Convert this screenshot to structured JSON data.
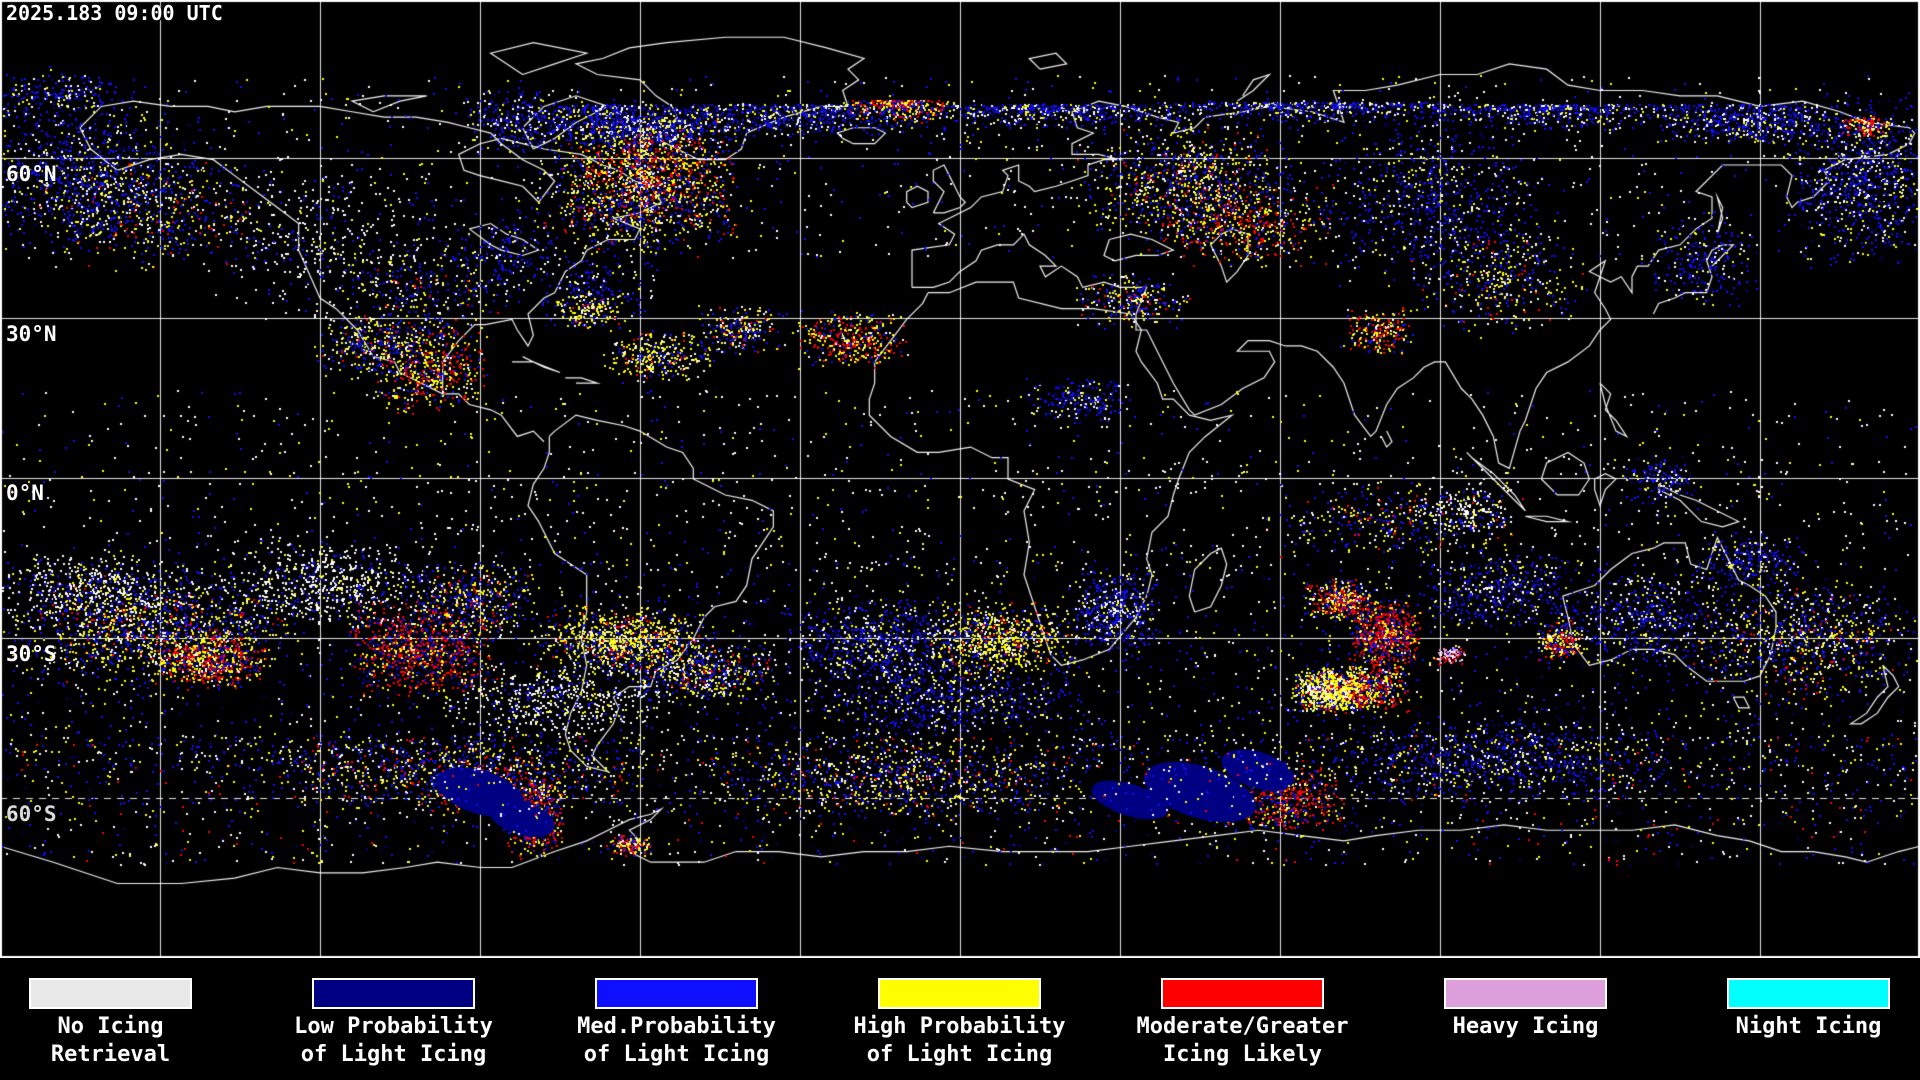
{
  "header": {
    "timestamp": "2025.183 09:00 UTC"
  },
  "map": {
    "lat_labels": [
      {
        "text": "60°N"
      },
      {
        "text": "30°N"
      },
      {
        "text": "0°N"
      },
      {
        "text": "30°S"
      },
      {
        "text": "60°S"
      }
    ]
  },
  "legend": {
    "items": [
      {
        "name": "no-icing-retrieval",
        "line1": "No Icing",
        "line2": "Retrieval",
        "color": "#E8E8E8"
      },
      {
        "name": "low-prob-light-icing",
        "line1": "Low Probability",
        "line2": "of Light Icing",
        "color": "#000082"
      },
      {
        "name": "med-prob-light-icing",
        "line1": "Med.Probability",
        "line2": "of Light Icing",
        "color": "#0F0FFF"
      },
      {
        "name": "high-prob-light-icing",
        "line1": "High Probability",
        "line2": "of Light Icing",
        "color": "#FFFF00"
      },
      {
        "name": "moderate-greater-icing",
        "line1": "Moderate/Greater",
        "line2": "Icing Likely",
        "color": "#FF0000"
      },
      {
        "name": "heavy-icing",
        "line1": "Heavy Icing",
        "line2": "",
        "color": "#DDA0DD"
      },
      {
        "name": "night-icing",
        "line1": "Night Icing",
        "line2": "",
        "color": "#00FFFF"
      }
    ]
  },
  "colors": {
    "background": "#000000",
    "gridline": "#FFFFFF",
    "coastline": "#FFFFFF",
    "no_icing_speckle": "#FFFFFF"
  }
}
